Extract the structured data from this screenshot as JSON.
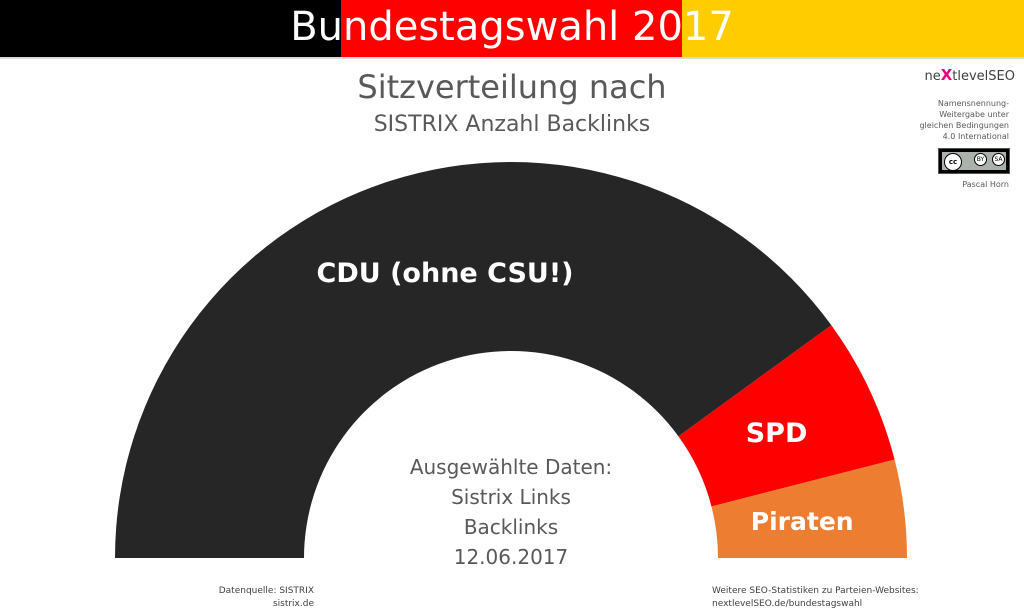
{
  "banner": {
    "title": "Bundestagswahl 2017",
    "colors": [
      "#000000",
      "#ff0000",
      "#ffcc00"
    ]
  },
  "chart_data": {
    "type": "pie",
    "variant": "semicircle-parliament",
    "title": "Sitzverteilung nach",
    "subtitle": "SISTRIX Anzahl Backlinks",
    "slices": [
      {
        "label": "CDU (ohne CSU!)",
        "value": 80,
        "color": "#262626"
      },
      {
        "label": "SPD",
        "value": 12,
        "color": "#ff0000"
      },
      {
        "label": "Piraten",
        "value": 8,
        "color": "#ed7d31"
      }
    ],
    "center_lines": [
      "Ausgewählte Daten:",
      "Sistrix Links",
      "Backlinks",
      "12.06.2017"
    ]
  },
  "brand": {
    "name_prefix": "ne",
    "name_x": "X",
    "name_suffix": "tlevelSEO",
    "license_lines": [
      "Namensnennung-",
      "Weitergabe unter",
      "gleichen Bedingungen",
      "4.0 International"
    ],
    "badge": {
      "cc": "cc",
      "by": "BY",
      "sa": "SA"
    },
    "author": "Pascal Horn"
  },
  "footer": {
    "source_line1": "Datenquelle: SISTRIX",
    "source_line2": "sistrix.de",
    "more_line1": "Weitere SEO-Statistiken zu Parteien-Websites:",
    "more_line2": "nextlevelSEO.de/bundestagswahl"
  }
}
